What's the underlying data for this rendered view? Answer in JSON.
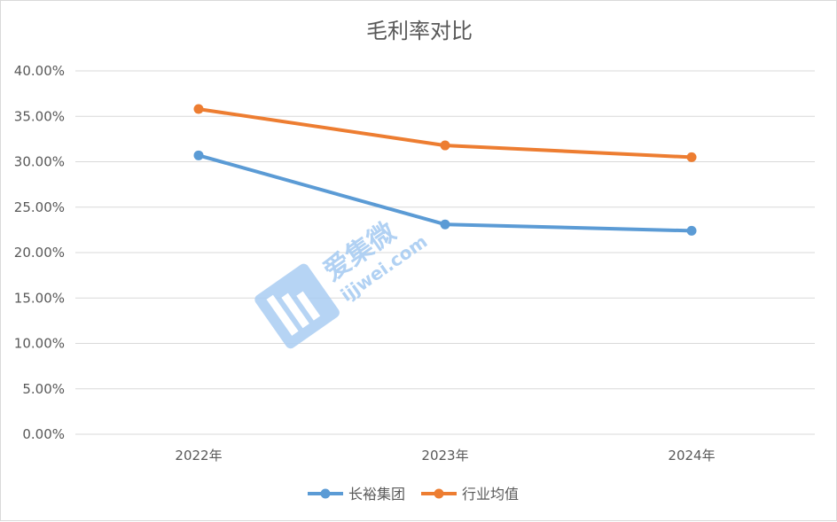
{
  "chart_data": {
    "type": "line",
    "title": "毛利率对比",
    "categories": [
      "2022年",
      "2023年",
      "2024年"
    ],
    "y_tick_labels": [
      "0.00%",
      "5.00%",
      "10.00%",
      "15.00%",
      "20.00%",
      "25.00%",
      "30.00%",
      "35.00%",
      "40.00%"
    ],
    "ylim": [
      0,
      40
    ],
    "y_unit": "%",
    "grid": true,
    "legend_position": "bottom",
    "series": [
      {
        "name": "长裕集团",
        "values": [
          30.7,
          23.1,
          22.4
        ],
        "color": "#5b9bd5"
      },
      {
        "name": "行业均值",
        "values": [
          35.8,
          31.8,
          30.5
        ],
        "color": "#ed7d31"
      }
    ]
  },
  "watermark": {
    "logo_icon": "jw-logo-icon",
    "brand_text": "爱集微",
    "url_text": "ijjwei.com",
    "color": "#a9cdf2"
  }
}
